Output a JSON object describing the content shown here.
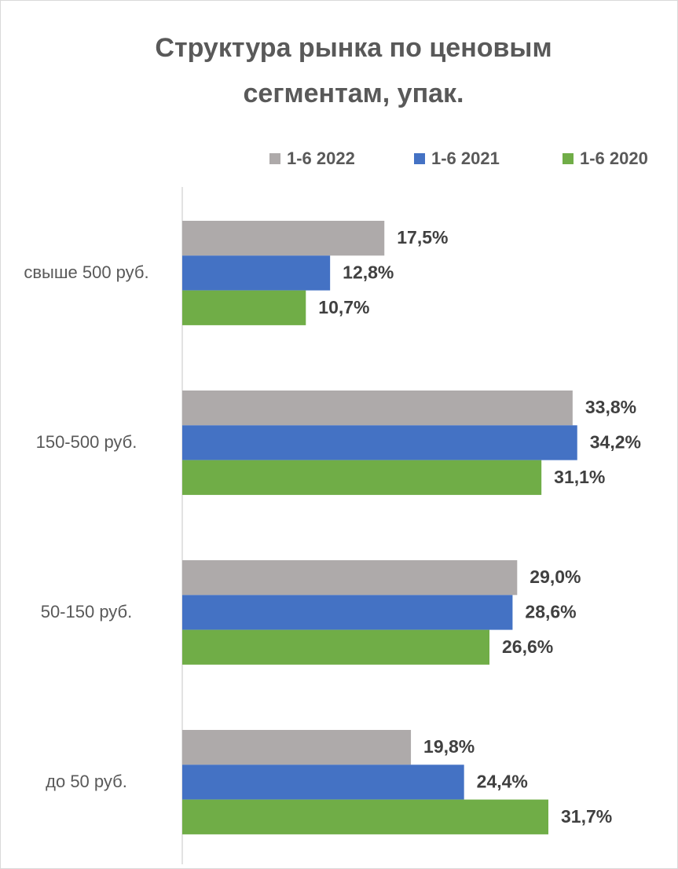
{
  "chart_data": {
    "type": "bar",
    "orientation": "horizontal",
    "title": "Структура рынка по ценовым сегментам, упак.",
    "categories": [
      "свыше 500 руб.",
      "150-500 руб.",
      "50-150 руб.",
      "до 50 руб."
    ],
    "series": [
      {
        "name": "1-6 2022",
        "color": "#aeaaaa",
        "values": [
          17.5,
          33.8,
          29.0,
          19.8
        ],
        "value_labels": [
          "17,5%",
          "33,8%",
          "29,0%",
          "19,8%"
        ]
      },
      {
        "name": "1-6 2021",
        "color": "#4472c4",
        "values": [
          12.8,
          34.2,
          28.6,
          24.4
        ],
        "value_labels": [
          "12,8%",
          "34,2%",
          "28,6%",
          "24,4%"
        ]
      },
      {
        "name": "1-6 2020",
        "color": "#70ad47",
        "values": [
          10.7,
          31.1,
          26.6,
          31.7
        ],
        "value_labels": [
          "10,7%",
          "31,1%",
          "26,6%",
          "31,7%"
        ]
      }
    ],
    "legend": "top"
  }
}
